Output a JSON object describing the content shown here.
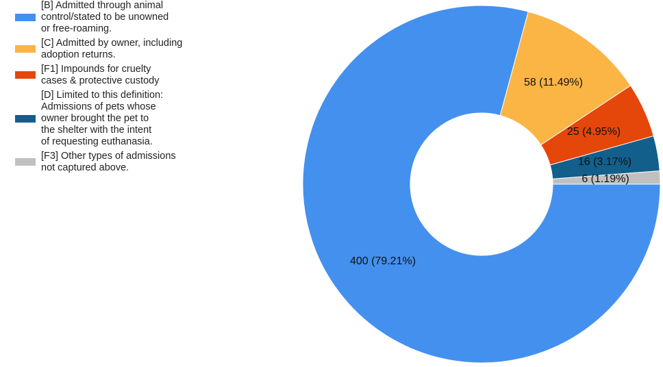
{
  "chart_data": {
    "type": "pie",
    "donut": true,
    "legend_position": "left",
    "slices": [
      {
        "key": "F3",
        "legend_lines": [
          "[F3] Other types of admissions",
          "not captured above."
        ],
        "value": 6,
        "label": "6 (1.19%)",
        "color": "#c0c0c0"
      },
      {
        "key": "D",
        "legend_lines": [
          "[D] Limited to this definition:",
          "Admissions of pets whose",
          "owner brought the pet to",
          "the shelter with the intent",
          "of requesting euthanasia."
        ],
        "value": 16,
        "label": "16 (3.17%)",
        "color": "#125f8c"
      },
      {
        "key": "F1",
        "legend_lines": [
          "[F1] Impounds for cruelty",
          "cases & protective custody"
        ],
        "value": 25,
        "label": "25 (4.95%)",
        "color": "#e5460a"
      },
      {
        "key": "C",
        "legend_lines": [
          "[C] Admitted by owner, including",
          "adoption returns."
        ],
        "value": 58,
        "label": "58 (11.49%)",
        "color": "#fbb545"
      },
      {
        "key": "B",
        "legend_lines": [
          "[B] Admitted through animal",
          "control/stated to be unowned",
          "or free-roaming."
        ],
        "value": 400,
        "label": "400 (79.21%)",
        "color": "#4490ee"
      }
    ],
    "legend_order": [
      "B",
      "C",
      "F1",
      "D",
      "F3"
    ]
  }
}
